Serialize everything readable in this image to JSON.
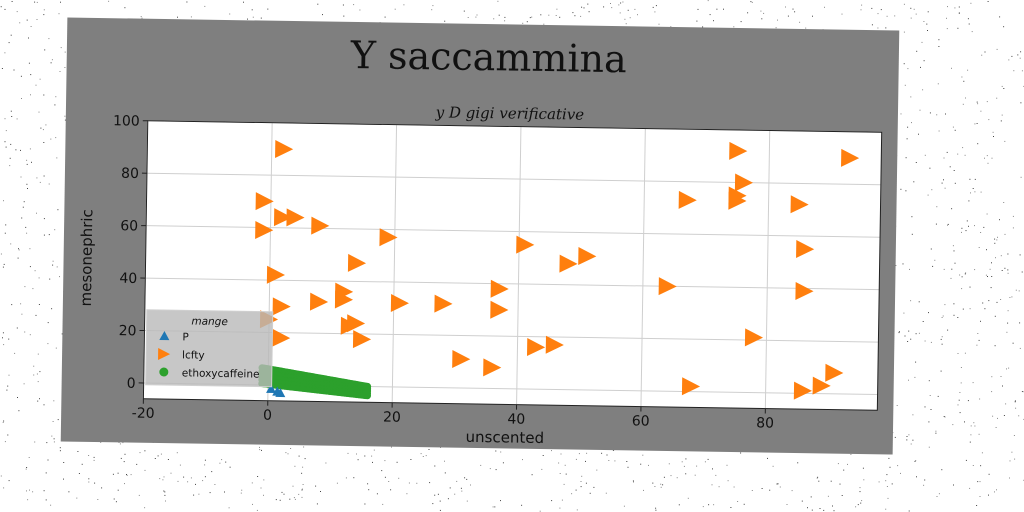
{
  "chart_data": {
    "type": "scatter",
    "title": "Y saccammina",
    "subtitle": "y D gigi verificative",
    "xlabel": "unscented",
    "ylabel": "mesonephric",
    "xlim": [
      -20,
      98
    ],
    "ylim": [
      -6,
      100
    ],
    "xticks": [
      -20,
      0,
      20,
      40,
      60,
      80
    ],
    "yticks": [
      0,
      20,
      40,
      60,
      80,
      100
    ],
    "grid": true,
    "legend": {
      "title": "mange",
      "placement": "lower-left"
    },
    "series": [
      {
        "name": "P",
        "marker": "triangle-up",
        "color": "#1f77b4",
        "points": [
          [
            1.5,
            -2.5
          ],
          [
            0.5,
            -1.5
          ],
          [
            2.0,
            -3.0
          ]
        ]
      },
      {
        "name": "lcfty",
        "marker": "triangle-right",
        "color": "#ff7f0e",
        "points": [
          [
            2,
            90
          ],
          [
            -1,
            70
          ],
          [
            -1,
            59
          ],
          [
            2,
            64
          ],
          [
            4,
            64
          ],
          [
            8,
            61
          ],
          [
            19,
            57
          ],
          [
            1,
            42
          ],
          [
            0,
            25
          ],
          [
            2,
            30
          ],
          [
            2,
            18
          ],
          [
            8,
            32
          ],
          [
            12,
            36
          ],
          [
            12,
            33
          ],
          [
            14,
            47
          ],
          [
            13,
            23
          ],
          [
            14,
            24
          ],
          [
            15,
            18
          ],
          [
            21,
            32
          ],
          [
            28,
            32
          ],
          [
            37,
            38
          ],
          [
            37,
            30
          ],
          [
            31,
            11
          ],
          [
            36,
            8
          ],
          [
            41,
            55
          ],
          [
            43,
            16
          ],
          [
            46,
            17
          ],
          [
            48,
            48
          ],
          [
            51,
            51
          ],
          [
            64,
            40
          ],
          [
            67,
            73
          ],
          [
            68,
            2
          ],
          [
            75,
            92
          ],
          [
            76,
            80
          ],
          [
            75,
            75
          ],
          [
            75,
            73
          ],
          [
            78,
            21
          ],
          [
            85,
            72
          ],
          [
            86,
            55
          ],
          [
            86,
            39
          ],
          [
            86,
            1
          ],
          [
            89,
            3
          ],
          [
            91,
            8
          ],
          [
            93,
            90
          ]
        ]
      },
      {
        "name": "ethoxycaffeine",
        "marker": "circle",
        "color": "#2ca02c",
        "band": {
          "x_start": -1,
          "x_end": 16,
          "y_top_start": 6.5,
          "y_top_end": 0,
          "y_bottom_start": 0.5,
          "y_bottom_end": -3.5
        }
      }
    ]
  }
}
